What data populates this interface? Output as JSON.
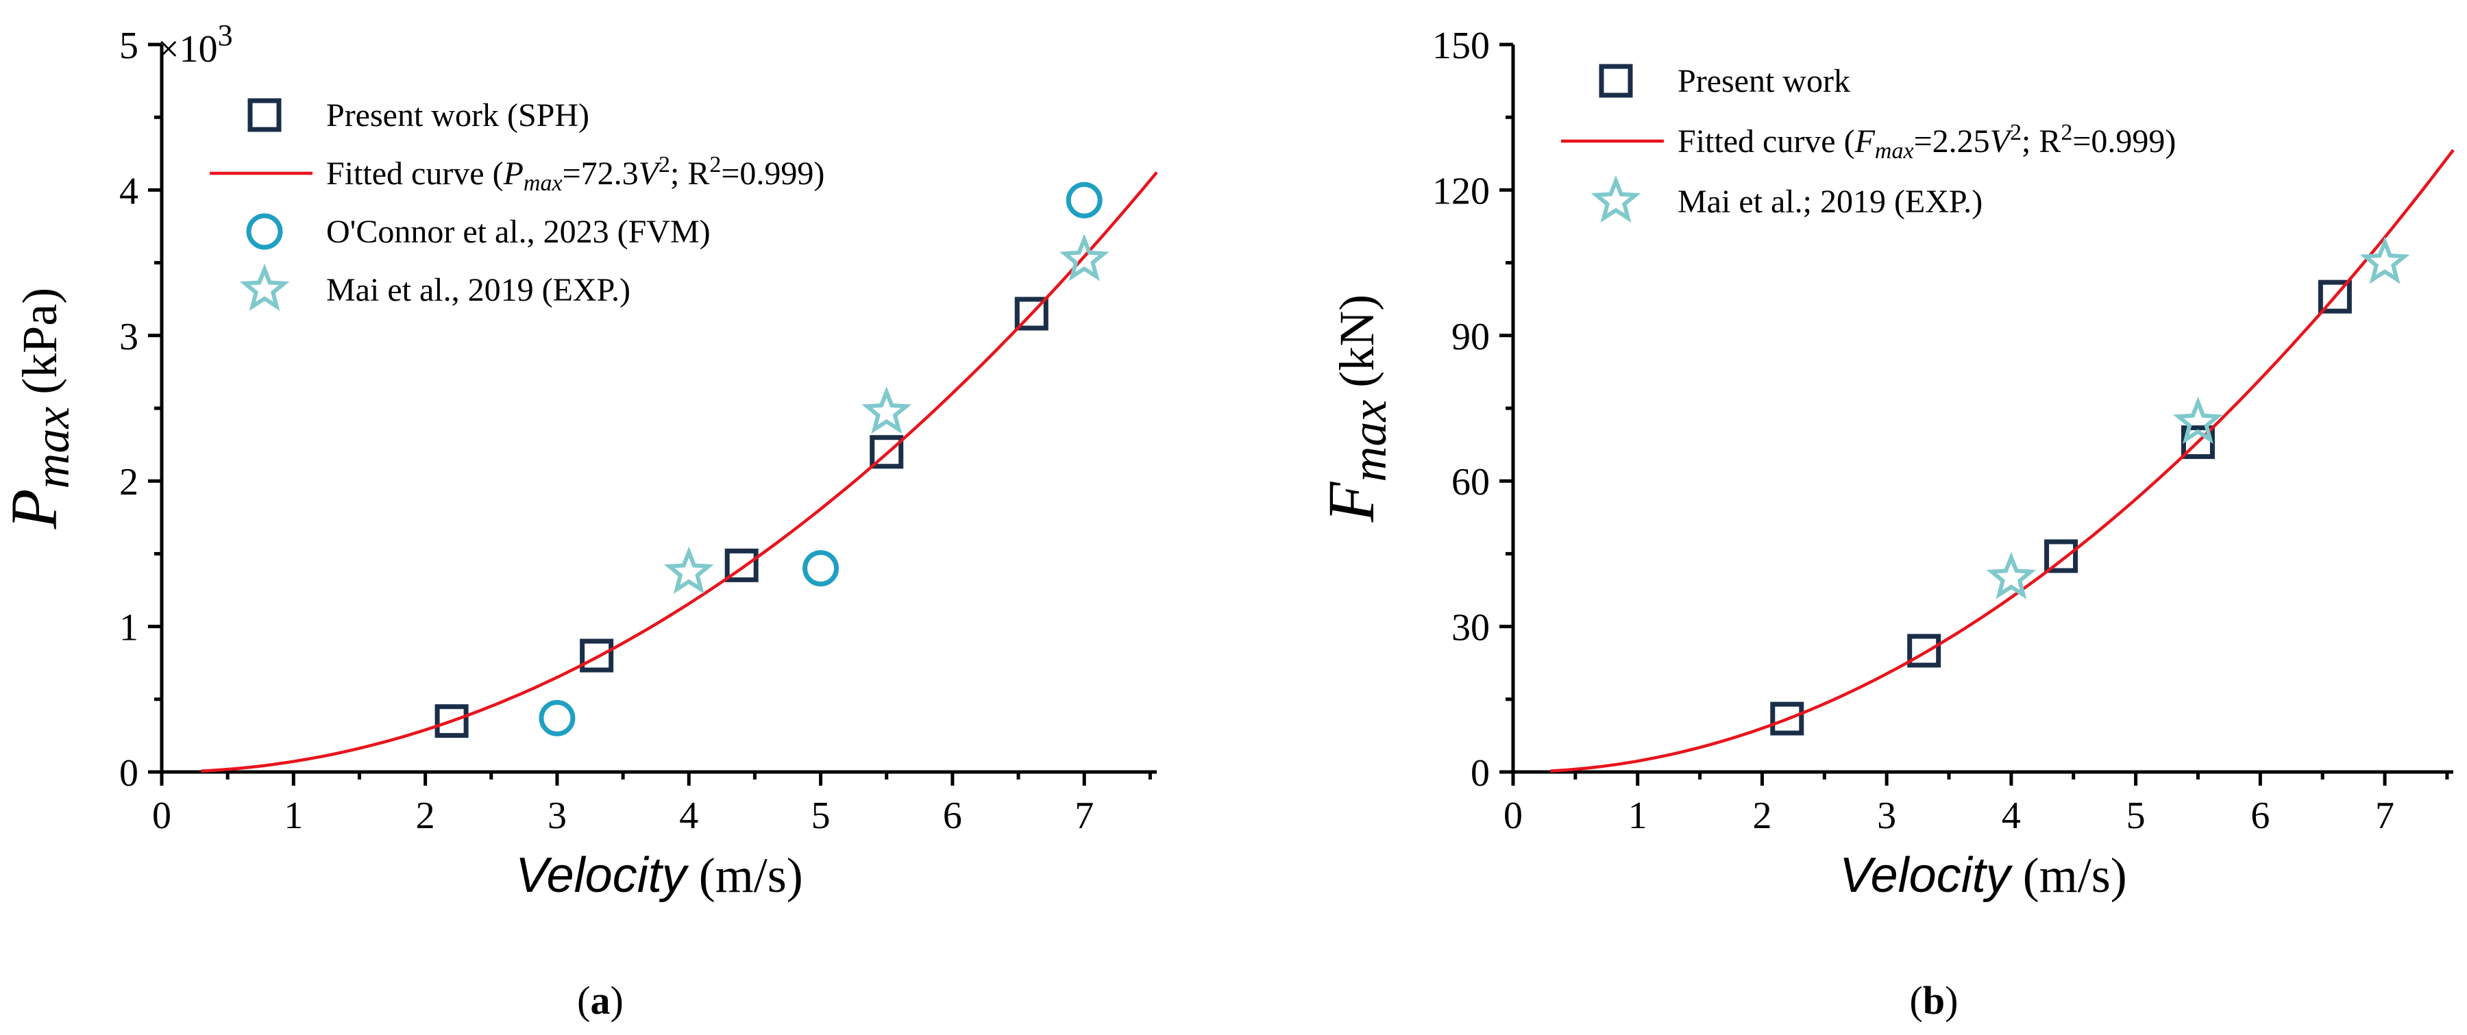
{
  "colors": {
    "square": "#1a2e48",
    "fit": "#e8141c",
    "circle": "#1fa0c2",
    "star": "#7fc9cc",
    "axis": "#000000"
  },
  "chart_data": [
    {
      "type": "scatter",
      "panel_label": "(a)",
      "panel_label_parts": {
        "open": "(",
        "letter": "a",
        "close": ")"
      },
      "xlabel": "Velocity (m/s)",
      "xlabel_parts": {
        "italic": "Velocity",
        "unit": " (m/s)"
      },
      "ylabel": "P_max (kPa)",
      "ylabel_parts": {
        "main": "P",
        "sub": "max",
        "unit": " (kPa)"
      },
      "y_multiplier": "×10³",
      "y_multiplier_parts": {
        "base": "×10",
        "exp": "3"
      },
      "xlim": [
        0,
        7.55
      ],
      "ylim": [
        0,
        5
      ],
      "xticks": [
        0,
        1,
        2,
        3,
        4,
        5,
        6,
        7
      ],
      "yticks": [
        0,
        1,
        2,
        3,
        4,
        5
      ],
      "legend_position": "top-left",
      "series": [
        {
          "name": "Present work (SPH)",
          "marker": "square",
          "color": "#1a2e48",
          "x": [
            2.2,
            3.3,
            4.4,
            5.5,
            6.6
          ],
          "y": [
            0.35,
            0.8,
            1.42,
            2.2,
            3.15
          ]
        },
        {
          "name": "Fitted curve (P_max=72.3V²; R²=0.999)",
          "marker": "line",
          "color": "#e8141c",
          "fit_coefficient": 0.0723,
          "x_range": [
            0.3,
            7.55
          ]
        },
        {
          "name": "O'Connor et al., 2023 (FVM)",
          "marker": "circle",
          "color": "#1fa0c2",
          "x": [
            3.0,
            5.0,
            7.0
          ],
          "y": [
            0.37,
            1.4,
            3.93
          ]
        },
        {
          "name": "Mai et al., 2019 (EXP.)",
          "marker": "star",
          "color": "#7fc9cc",
          "x": [
            4.0,
            5.5,
            7.0
          ],
          "y": [
            1.37,
            2.47,
            3.52
          ]
        }
      ],
      "legend": [
        {
          "marker": "square",
          "color": "#1a2e48",
          "parts": [
            {
              "t": "Present work (SPH)"
            }
          ]
        },
        {
          "marker": "line",
          "color": "#e8141c",
          "parts": [
            {
              "t": "Fitted curve ("
            },
            {
              "t": "P",
              "i": true
            },
            {
              "t": "max",
              "i": true,
              "sub": true
            },
            {
              "t": "=72.3"
            },
            {
              "t": "V",
              "i": true
            },
            {
              "t": "2",
              "sup": true
            },
            {
              "t": "; R"
            },
            {
              "t": "2",
              "sup": true
            },
            {
              "t": "=0.999)"
            }
          ]
        },
        {
          "marker": "circle",
          "color": "#1fa0c2",
          "parts": [
            {
              "t": "O'Connor et al., 2023 (FVM)"
            }
          ]
        },
        {
          "marker": "star",
          "color": "#7fc9cc",
          "parts": [
            {
              "t": "Mai et al., 2019 (EXP.)"
            }
          ]
        }
      ]
    },
    {
      "type": "scatter",
      "panel_label": "(b)",
      "panel_label_parts": {
        "open": "(",
        "letter": "b",
        "close": ")"
      },
      "xlabel": "Velocity (m/s)",
      "xlabel_parts": {
        "italic": "Velocity",
        "unit": " (m/s)"
      },
      "ylabel": "F_max (kN)",
      "ylabel_parts": {
        "main": "F",
        "sub": "max",
        "unit": " (kN)"
      },
      "xlim": [
        0,
        7.55
      ],
      "ylim": [
        0,
        150
      ],
      "xticks": [
        0,
        1,
        2,
        3,
        4,
        5,
        6,
        7
      ],
      "yticks": [
        0,
        30,
        60,
        90,
        120,
        150
      ],
      "legend_position": "top-left",
      "series": [
        {
          "name": "Present work",
          "marker": "square",
          "color": "#1a2e48",
          "x": [
            2.2,
            3.3,
            4.4,
            5.5,
            6.6
          ],
          "y": [
            11,
            25,
            44.5,
            68,
            98
          ]
        },
        {
          "name": "Fitted curve (F_max=2.25V²; R²=0.999)",
          "marker": "line",
          "color": "#e8141c",
          "fit_coefficient": 2.25,
          "x_range": [
            0.3,
            7.55
          ]
        },
        {
          "name": "Mai et al.; 2019 (EXP.)",
          "marker": "star",
          "color": "#7fc9cc",
          "x": [
            4.0,
            5.5,
            7.0
          ],
          "y": [
            40,
            72,
            105
          ]
        }
      ],
      "legend": [
        {
          "marker": "square",
          "color": "#1a2e48",
          "parts": [
            {
              "t": "Present work"
            }
          ]
        },
        {
          "marker": "line",
          "color": "#e8141c",
          "parts": [
            {
              "t": "Fitted curve ("
            },
            {
              "t": "F",
              "i": true
            },
            {
              "t": "max",
              "i": true,
              "sub": true
            },
            {
              "t": "=2.25"
            },
            {
              "t": "V",
              "i": true
            },
            {
              "t": "2",
              "sup": true
            },
            {
              "t": "; R"
            },
            {
              "t": "2",
              "sup": true
            },
            {
              "t": "=0.999)"
            }
          ]
        },
        {
          "marker": "star",
          "color": "#7fc9cc",
          "parts": [
            {
              "t": "Mai et al.; 2019 (EXP.)"
            }
          ]
        }
      ]
    }
  ]
}
